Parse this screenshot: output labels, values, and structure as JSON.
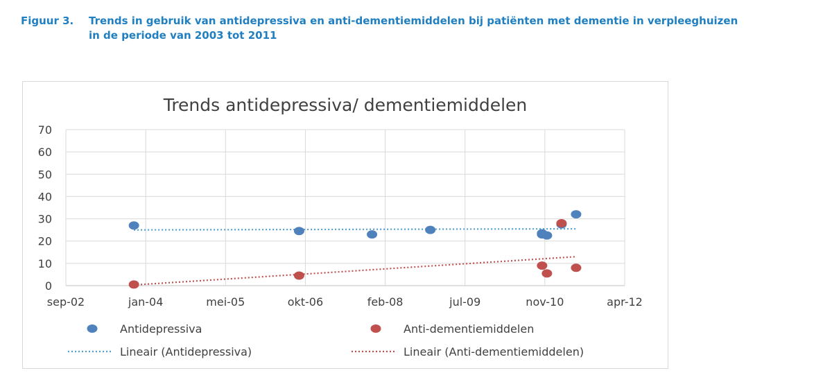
{
  "caption": {
    "label": "Figuur 3.",
    "line1": "Trends in gebruik van antidepressiva en anti-dementiemiddelen bij patiënten met dementie in verpleeghuizen",
    "line2": "in de periode van 2003 tot 2011"
  },
  "chart_data": {
    "type": "scatter",
    "title": "Trends antidepressiva/ dementiemiddelen",
    "xlabel": "",
    "ylabel": "",
    "x_ticks": [
      "sep-02",
      "jan-04",
      "mei-05",
      "okt-06",
      "feb-08",
      "jul-09",
      "nov-10",
      "apr-12"
    ],
    "x_range": [
      "2002-09",
      "2012-04"
    ],
    "y_ticks": [
      0,
      10,
      20,
      30,
      40,
      50,
      60,
      70
    ],
    "ylim": [
      0,
      70
    ],
    "grid": true,
    "legend_position": "bottom",
    "series": [
      {
        "name": "Antidepressiva",
        "color": "#4f81bd",
        "points": [
          {
            "x": "2003-11",
            "y": 27
          },
          {
            "x": "2006-09",
            "y": 24.5
          },
          {
            "x": "2007-12",
            "y": 23
          },
          {
            "x": "2008-12",
            "y": 25
          },
          {
            "x": "2010-11",
            "y": 23.5
          },
          {
            "x": "2010-11",
            "y": 23
          },
          {
            "x": "2010-12",
            "y": 22.5
          },
          {
            "x": "2011-03",
            "y": 27.5
          },
          {
            "x": "2011-06",
            "y": 32
          }
        ]
      },
      {
        "name": "Anti-dementiemiddelen",
        "color": "#c0504d",
        "points": [
          {
            "x": "2003-11",
            "y": 0.5
          },
          {
            "x": "2006-09",
            "y": 4.5
          },
          {
            "x": "2010-11",
            "y": 9
          },
          {
            "x": "2010-12",
            "y": 5.5
          },
          {
            "x": "2011-03",
            "y": 28
          },
          {
            "x": "2011-06",
            "y": 8
          }
        ]
      }
    ],
    "trendlines": [
      {
        "name": "Lineair (Antidepressiva)",
        "color": "#4f9fd0",
        "from": {
          "x": "2003-11",
          "y": 25
        },
        "to": {
          "x": "2011-06",
          "y": 25.5
        }
      },
      {
        "name": "Lineair (Anti-dementiemiddelen)",
        "color": "#c0504d",
        "from": {
          "x": "2003-11",
          "y": 0.3
        },
        "to": {
          "x": "2011-06",
          "y": 13
        }
      }
    ]
  }
}
